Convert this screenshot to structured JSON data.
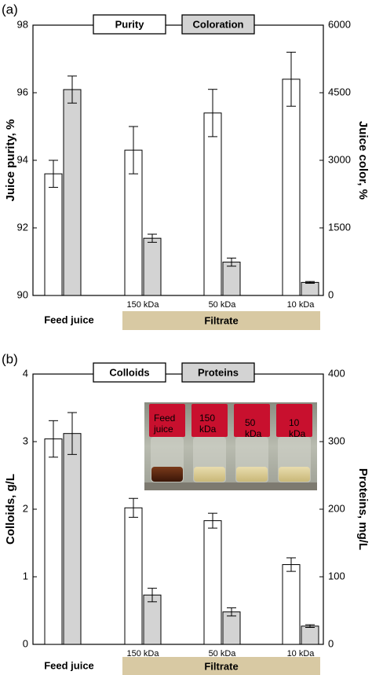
{
  "chart_data": [
    {
      "panel_label": "(a)",
      "type": "bar",
      "categories": [
        "Feed juice",
        "150 kDa",
        "50 kDa",
        "10 kDa"
      ],
      "group_label": "Filtrate",
      "legend": {
        "left": "Purity",
        "right": "Coloration"
      },
      "ylabel_left": "Juice purity, %",
      "ylabel_right": "Juice color, %",
      "ylim_left": [
        90,
        98
      ],
      "ylim_right": [
        0,
        6000
      ],
      "yticks_left": [
        "90",
        "92",
        "94",
        "96",
        "98"
      ],
      "yticks_right": [
        "0",
        "1500",
        "3000",
        "4500",
        "6000"
      ],
      "series": [
        {
          "name": "Purity",
          "axis": "left",
          "values": [
            93.6,
            94.3,
            95.4,
            96.4
          ],
          "errors": [
            0.4,
            0.7,
            0.7,
            0.8
          ]
        },
        {
          "name": "Coloration",
          "axis": "right",
          "values": [
            4570,
            1270,
            740,
            290
          ],
          "errors": [
            300,
            90,
            90,
            20
          ]
        }
      ],
      "colors": {
        "left": "#ffffff",
        "right": "#d3d3d3",
        "filtrate_band": "#d8c9a3"
      }
    },
    {
      "panel_label": "(b)",
      "type": "bar",
      "categories": [
        "Feed juice",
        "150 kDa",
        "50 kDa",
        "10 kDa"
      ],
      "group_label": "Filtrate",
      "legend": {
        "left": "Colloids",
        "right": "Proteins"
      },
      "ylabel_left": "Colloids, g/L",
      "ylabel_right": "Proteins, mg/L",
      "ylim_left": [
        0,
        4
      ],
      "ylim_right": [
        0,
        400
      ],
      "yticks_left": [
        "0",
        "1",
        "2",
        "3",
        "4"
      ],
      "yticks_right": [
        "0",
        "100",
        "200",
        "300",
        "400"
      ],
      "series": [
        {
          "name": "Colloids",
          "axis": "left",
          "values": [
            3.04,
            2.02,
            1.83,
            1.18
          ],
          "errors": [
            0.27,
            0.14,
            0.11,
            0.1
          ]
        },
        {
          "name": "Proteins",
          "axis": "right",
          "values": [
            312,
            73,
            48,
            27
          ],
          "errors": [
            31,
            10,
            6,
            2
          ]
        }
      ],
      "inset_labels": [
        "Feed juice",
        "150 kDa",
        "50 kDa",
        "10 kDa"
      ],
      "colors": {
        "left": "#ffffff",
        "right": "#d3d3d3",
        "filtrate_band": "#d8c9a3"
      }
    }
  ]
}
